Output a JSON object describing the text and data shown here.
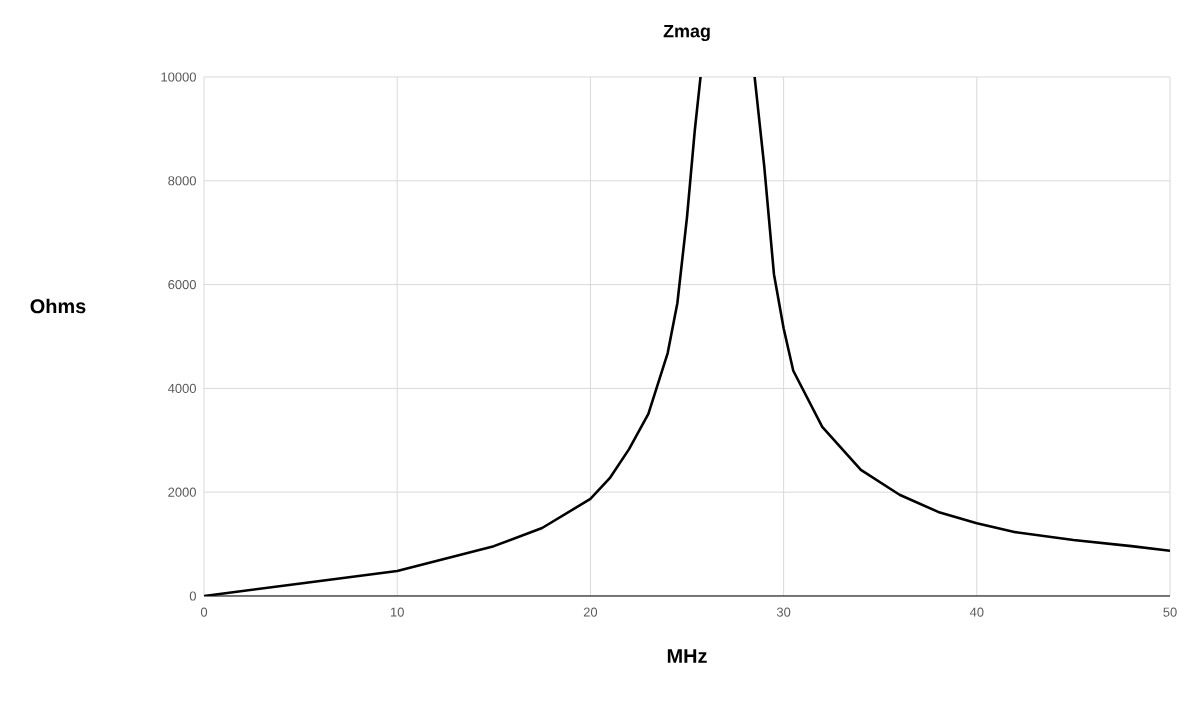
{
  "chart_data": {
    "type": "line",
    "title": "Zmag",
    "xlabel": "MHz",
    "ylabel": "Ohms",
    "x": [
      0,
      5,
      10,
      15,
      17.5,
      20,
      21,
      22,
      23,
      24,
      24.5,
      25,
      25.4,
      25.7,
      27,
      28.5,
      29,
      29.5,
      30,
      30.5,
      32,
      34,
      36,
      38,
      40,
      42,
      45,
      48,
      50
    ],
    "series": [
      {
        "color": "#000000",
        "values": [
          0,
          240,
          480,
          960,
          1310,
          1870,
          2270,
          2830,
          3510,
          4680,
          5640,
          7300,
          8960,
          10000,
          null,
          10000,
          8270,
          6200,
          5160,
          4340,
          3260,
          2430,
          1950,
          1620,
          1400,
          1230,
          1080,
          960,
          870
        ]
      }
    ],
    "xlim": [
      0,
      50
    ],
    "ylim": [
      0,
      10000
    ],
    "xticks": [
      0,
      10,
      20,
      30,
      40,
      50
    ],
    "yticks": [
      0,
      2000,
      4000,
      6000,
      8000,
      10000
    ],
    "grid": true,
    "marker": "none",
    "line_style": "solid"
  }
}
